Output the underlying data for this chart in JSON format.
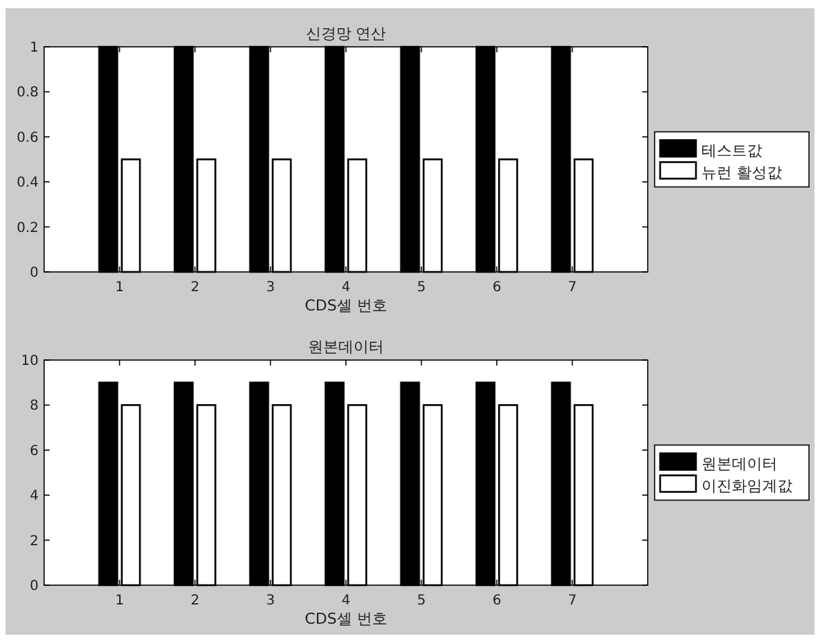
{
  "chart_data": [
    {
      "type": "bar",
      "title": "신경망 연산",
      "xlabel": "CDS셀 번호",
      "x": [
        1,
        2,
        3,
        4,
        5,
        6,
        7
      ],
      "xlim": [
        0,
        8
      ],
      "xticks": [
        1,
        2,
        3,
        4,
        5,
        6,
        7
      ],
      "ylim": [
        0,
        1
      ],
      "yticks": [
        0,
        0.2,
        0.4,
        0.6,
        0.8,
        1
      ],
      "legend": "right",
      "series": [
        {
          "name": "테스트값",
          "color": "#000000",
          "values": [
            1,
            1,
            1,
            1,
            1,
            1,
            1
          ]
        },
        {
          "name": "뉴런 활성값",
          "color": "#ffffff",
          "values": [
            0.5,
            0.5,
            0.5,
            0.5,
            0.5,
            0.5,
            0.5
          ]
        }
      ]
    },
    {
      "type": "bar",
      "title": "원본데이터",
      "xlabel": "CDS셀 번호",
      "x": [
        1,
        2,
        3,
        4,
        5,
        6,
        7
      ],
      "xlim": [
        0,
        8
      ],
      "xticks": [
        1,
        2,
        3,
        4,
        5,
        6,
        7
      ],
      "ylim": [
        0,
        10
      ],
      "yticks": [
        0,
        2,
        4,
        6,
        8,
        10
      ],
      "legend": "right",
      "series": [
        {
          "name": "원본데이터",
          "color": "#000000",
          "values": [
            9,
            9,
            9,
            9,
            9,
            9,
            9
          ]
        },
        {
          "name": "이진화임계값",
          "color": "#ffffff",
          "values": [
            8,
            8,
            8,
            8,
            8,
            8,
            8
          ]
        }
      ]
    }
  ]
}
